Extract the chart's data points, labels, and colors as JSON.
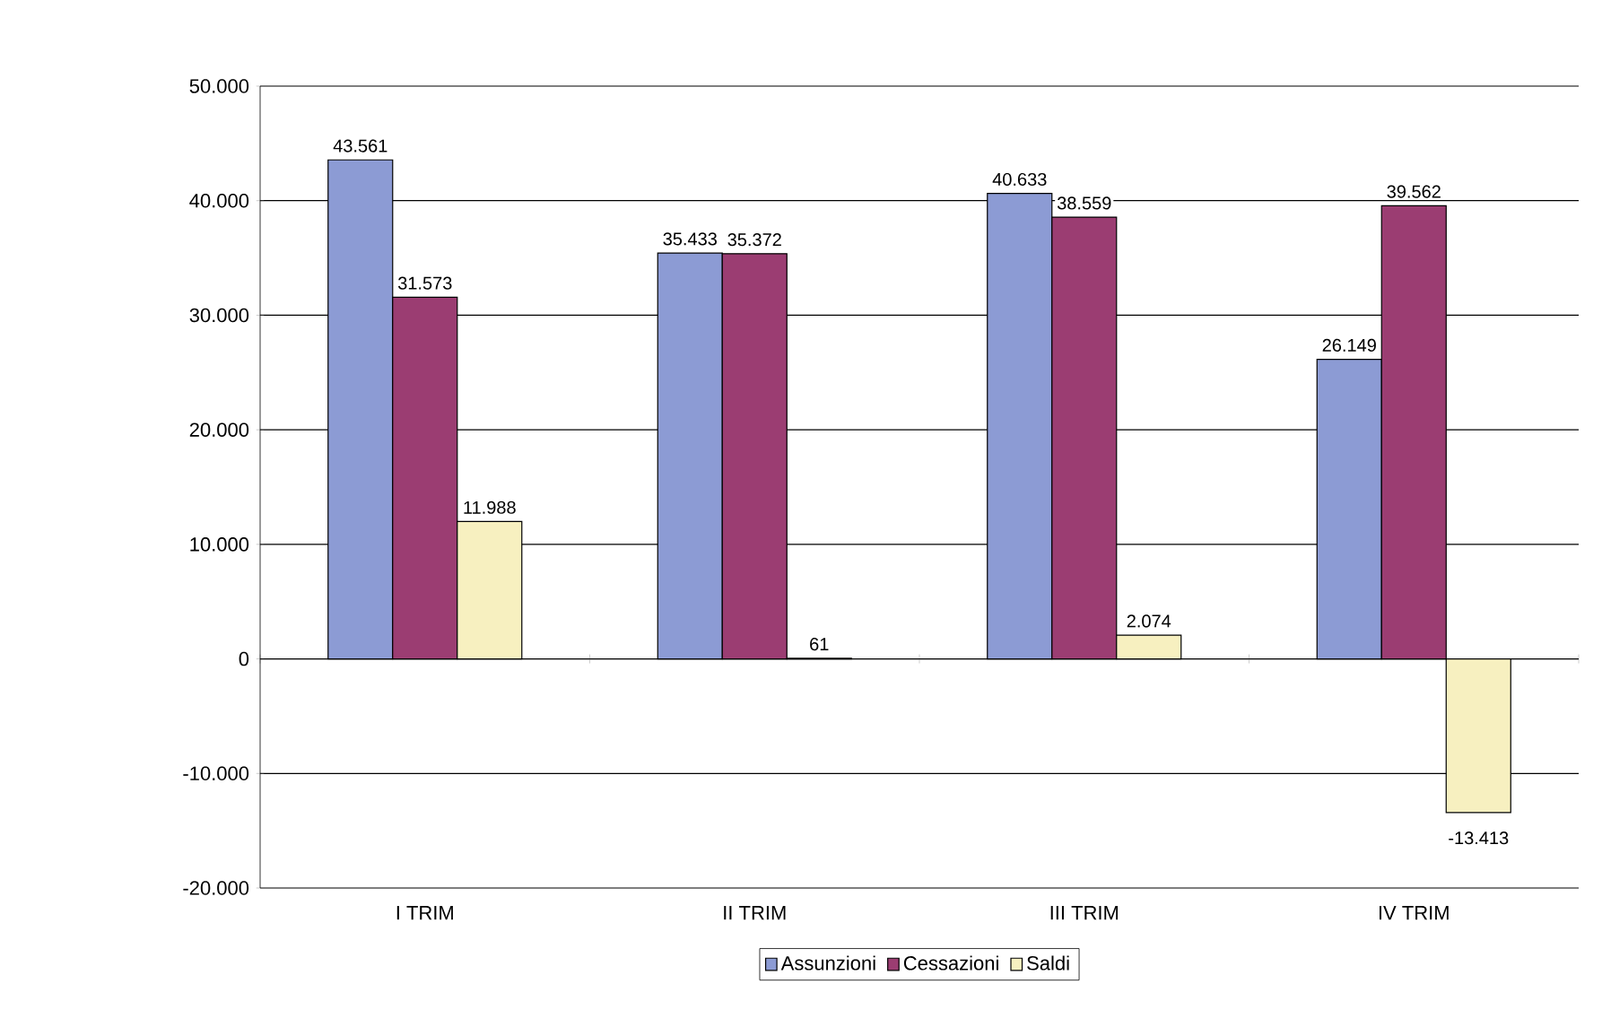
{
  "chart_data": {
    "type": "bar",
    "categories": [
      "I TRIM",
      "II TRIM",
      "III TRIM",
      "IV TRIM"
    ],
    "series": [
      {
        "name": "Assunzioni",
        "color": "#8c9bd4",
        "values": [
          43561,
          35433,
          40633,
          26149
        ],
        "value_labels": [
          "43.561",
          "35.433",
          "40.633",
          "26.149"
        ]
      },
      {
        "name": "Cessazioni",
        "color": "#9b3d72",
        "values": [
          31573,
          35372,
          38559,
          39562
        ],
        "value_labels": [
          "31.573",
          "35.372",
          "38.559",
          "39.562"
        ]
      },
      {
        "name": "Saldi",
        "color": "#f7f0c0",
        "values": [
          11988,
          61,
          2074,
          -13413
        ],
        "value_labels": [
          "11.988",
          "61",
          "2.074",
          "-13.413"
        ]
      }
    ],
    "ylim": [
      -20000,
      50000
    ],
    "yticks": [
      {
        "value": -20000,
        "label": "-20.000"
      },
      {
        "value": -10000,
        "label": "-10.000"
      },
      {
        "value": 0,
        "label": "0"
      },
      {
        "value": 10000,
        "label": "10.000"
      },
      {
        "value": 20000,
        "label": "20.000"
      },
      {
        "value": 30000,
        "label": "30.000"
      },
      {
        "value": 40000,
        "label": "40.000"
      },
      {
        "value": 50000,
        "label": "50.000"
      }
    ],
    "grid": "y",
    "legend": "bottom"
  }
}
